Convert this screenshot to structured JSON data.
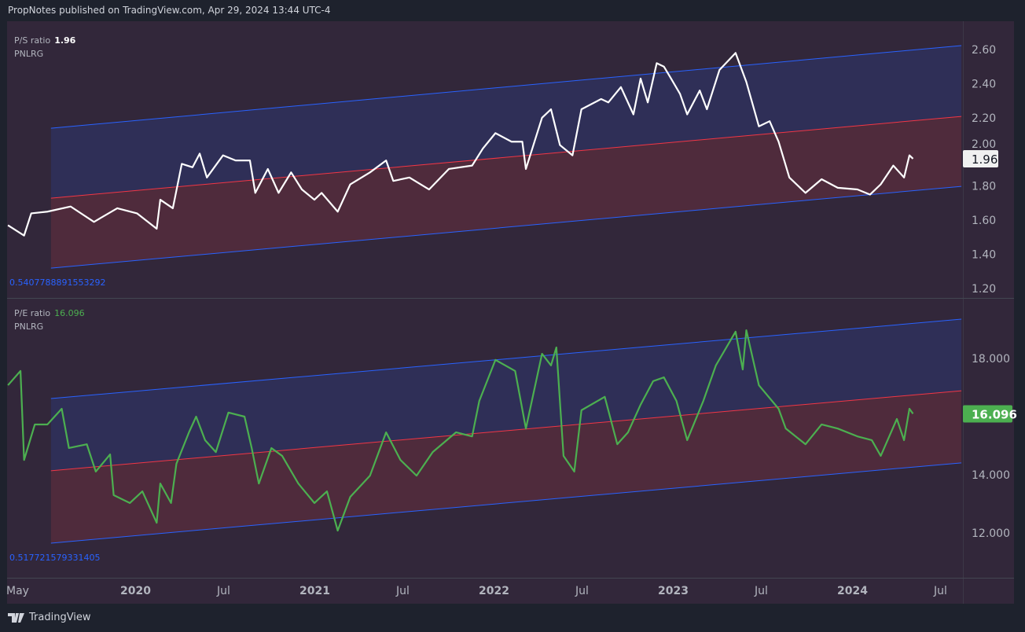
{
  "header": {
    "text": "PropNotes published on TradingView.com, Apr 29, 2024 13:44 UTC-4"
  },
  "footer": {
    "brand": "TradingView"
  },
  "colors": {
    "background": "#1e222d",
    "pane": "#32273a",
    "upper_band": "#2f2f57",
    "lower_band": "#4f2b3c",
    "channel_edge": "#2962ff",
    "channel_mid": "#f23645",
    "ps_line": "#ffffff",
    "pe_line": "#4caf50"
  },
  "chart_data": [
    {
      "type": "line",
      "title": "P/S ratio",
      "symbol": "PNLRG",
      "last_value": "1.96",
      "channel_label": "0.5407788891553292",
      "yticks": [
        "2.60",
        "2.40",
        "2.20",
        "2.00",
        "1.80",
        "1.60",
        "1.40",
        "1.20"
      ],
      "ylim": [
        1.2,
        2.6
      ],
      "channel": {
        "start": 2019.53,
        "end": 2024.61,
        "upper": [
          2.139,
          2.623
        ],
        "mid": [
          1.729,
          2.208
        ],
        "lower": [
          1.319,
          1.798
        ]
      },
      "x": [
        2019.29,
        2019.38,
        2019.42,
        2019.51,
        2019.64,
        2019.77,
        2019.9,
        2020.01,
        2020.12,
        2020.14,
        2020.21,
        2020.26,
        2020.32,
        2020.36,
        2020.4,
        2020.49,
        2020.56,
        2020.64,
        2020.67,
        2020.74,
        2020.8,
        2020.87,
        2020.93,
        2021.0,
        2021.04,
        2021.13,
        2021.2,
        2021.31,
        2021.4,
        2021.44,
        2021.53,
        2021.64,
        2021.75,
        2021.88,
        2021.94,
        2022.01,
        2022.1,
        2022.16,
        2022.18,
        2022.27,
        2022.32,
        2022.37,
        2022.44,
        2022.49,
        2022.6,
        2022.64,
        2022.71,
        2022.78,
        2022.82,
        2022.86,
        2022.91,
        2022.95,
        2022.99,
        2023.04,
        2023.08,
        2023.15,
        2023.19,
        2023.26,
        2023.35,
        2023.41,
        2023.48,
        2023.54,
        2023.59,
        2023.65,
        2023.74,
        2023.83,
        2023.92,
        2024.03,
        2024.1,
        2024.16,
        2024.23,
        2024.29,
        2024.32,
        2024.34
      ],
      "values": [
        1.57,
        1.51,
        1.64,
        1.65,
        1.68,
        1.59,
        1.67,
        1.64,
        1.55,
        1.72,
        1.67,
        1.93,
        1.91,
        1.99,
        1.85,
        1.98,
        1.95,
        1.95,
        1.76,
        1.9,
        1.76,
        1.88,
        1.78,
        1.72,
        1.76,
        1.65,
        1.81,
        1.88,
        1.95,
        1.83,
        1.85,
        1.78,
        1.9,
        1.92,
        2.02,
        2.11,
        2.06,
        2.06,
        1.9,
        2.2,
        2.25,
        2.04,
        1.98,
        2.25,
        2.31,
        2.29,
        2.38,
        2.22,
        2.43,
        2.29,
        2.52,
        2.5,
        2.43,
        2.34,
        2.22,
        2.36,
        2.25,
        2.48,
        2.58,
        2.41,
        2.15,
        2.18,
        2.06,
        1.85,
        1.76,
        1.84,
        1.79,
        1.78,
        1.75,
        1.81,
        1.92,
        1.85,
        1.98,
        1.96
      ]
    },
    {
      "type": "line",
      "title": "P/E ratio",
      "symbol": "PNLRG",
      "last_value": "16.096",
      "channel_label": "0.517721579331405",
      "yticks": [
        "18.000",
        "14.000",
        "12.000"
      ],
      "ylim": [
        11.5,
        19.5
      ],
      "channel": {
        "start": 2019.53,
        "end": 2024.61,
        "upper": [
          16.62,
          19.35
        ],
        "mid": [
          14.14,
          16.89
        ],
        "lower": [
          11.65,
          14.41
        ]
      },
      "x": [
        2019.29,
        2019.36,
        2019.38,
        2019.44,
        2019.51,
        2019.59,
        2019.63,
        2019.73,
        2019.78,
        2019.86,
        2019.88,
        2019.97,
        2020.04,
        2020.12,
        2020.14,
        2020.2,
        2020.23,
        2020.3,
        2020.34,
        2020.39,
        2020.45,
        2020.52,
        2020.61,
        2020.65,
        2020.69,
        2020.76,
        2020.82,
        2020.91,
        2021.0,
        2021.07,
        2021.13,
        2021.2,
        2021.31,
        2021.4,
        2021.48,
        2021.57,
        2021.66,
        2021.79,
        2021.88,
        2021.92,
        2022.01,
        2022.12,
        2022.18,
        2022.27,
        2022.32,
        2022.35,
        2022.39,
        2022.45,
        2022.49,
        2022.62,
        2022.69,
        2022.75,
        2022.82,
        2022.89,
        2022.95,
        2023.02,
        2023.08,
        2023.17,
        2023.24,
        2023.35,
        2023.39,
        2023.41,
        2023.48,
        2023.59,
        2023.63,
        2023.74,
        2023.83,
        2023.92,
        2024.03,
        2024.11,
        2024.16,
        2024.25,
        2024.29,
        2024.32,
        2024.34
      ],
      "values": [
        17.08,
        17.57,
        14.51,
        15.73,
        15.73,
        16.27,
        14.92,
        15.05,
        14.11,
        14.7,
        13.3,
        13.03,
        13.43,
        12.35,
        13.7,
        13.03,
        14.38,
        15.46,
        16.0,
        15.19,
        14.78,
        16.14,
        16.0,
        14.92,
        13.7,
        14.92,
        14.65,
        13.7,
        13.03,
        13.43,
        12.08,
        13.24,
        13.97,
        15.46,
        14.51,
        13.97,
        14.78,
        15.46,
        15.32,
        16.54,
        17.95,
        17.57,
        15.59,
        18.16,
        17.76,
        18.38,
        14.65,
        14.11,
        16.22,
        16.68,
        15.05,
        15.46,
        16.41,
        17.22,
        17.35,
        16.54,
        15.19,
        16.54,
        17.76,
        18.92,
        17.62,
        18.97,
        17.08,
        16.27,
        15.59,
        15.05,
        15.73,
        15.59,
        15.32,
        15.19,
        14.65,
        15.92,
        15.19,
        16.27,
        16.1
      ]
    }
  ],
  "time_axis": [
    {
      "label": "May",
      "t": 2019.33,
      "bold": false
    },
    {
      "label": "2020",
      "t": 2020.0,
      "bold": true
    },
    {
      "label": "Jul",
      "t": 2020.5,
      "bold": false
    },
    {
      "label": "2021",
      "t": 2021.0,
      "bold": true
    },
    {
      "label": "Jul",
      "t": 2021.5,
      "bold": false
    },
    {
      "label": "2022",
      "t": 2022.0,
      "bold": true
    },
    {
      "label": "Jul",
      "t": 2022.5,
      "bold": false
    },
    {
      "label": "2023",
      "t": 2023.0,
      "bold": true
    },
    {
      "label": "Jul",
      "t": 2023.5,
      "bold": false
    },
    {
      "label": "2024",
      "t": 2024.0,
      "bold": true
    },
    {
      "label": "Jul",
      "t": 2024.5,
      "bold": false
    }
  ]
}
